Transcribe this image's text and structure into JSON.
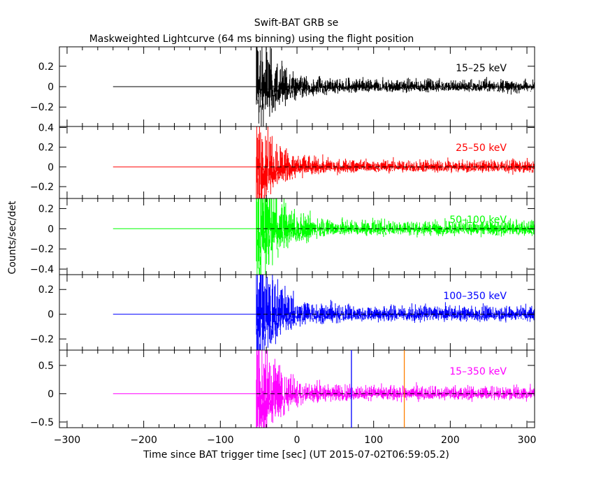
{
  "chart_data": {
    "type": "line",
    "title": "Swift-BAT GRB se",
    "subtitle": "Maskweighted Lightcurve (64 ms binning) using the flight position",
    "xlabel": "Time since BAT trigger time [sec] (UT 2015-07-02T06:59:05.2)",
    "ylabel": "Counts/sec/det",
    "xlim": [
      -310,
      310
    ],
    "xticks": [
      -300,
      -200,
      -100,
      0,
      100,
      200,
      300
    ],
    "xtick_labels": [
      "−300",
      "−200",
      "−100",
      "0",
      "100",
      "200",
      "300"
    ],
    "bin_size_sec": 0.064,
    "data_start_sec": -240,
    "burst_start_sec": -53,
    "zero_line": "dashed",
    "vertical_markers": [
      {
        "x": 71,
        "color": "#0000ff",
        "panel": 4
      },
      {
        "x": 140,
        "color": "#ff8000",
        "panel": 4
      }
    ],
    "series": [
      {
        "name": "15–25 keV",
        "color": "#000000",
        "ylim": [
          -0.39,
          0.39
        ],
        "yticks": [
          0.2,
          0,
          -0.2
        ],
        "ytick_labels": [
          "0.2",
          "0",
          "−0.2"
        ],
        "noise_late": 0.03,
        "noise_peak": 0.25,
        "decay_sec": 25
      },
      {
        "name": "25–50 keV",
        "color": "#ff0000",
        "ylim": [
          -0.32,
          0.41
        ],
        "yticks": [
          0.4,
          0.2,
          0,
          -0.2
        ],
        "ytick_labels": [
          "0.4",
          "0.2",
          "0",
          "−0.2"
        ],
        "noise_late": 0.03,
        "noise_peak": 0.25,
        "decay_sec": 25
      },
      {
        "name": "50–100 keV",
        "color": "#00ff00",
        "ylim": [
          -0.455,
          0.3
        ],
        "yticks": [
          0.2,
          0,
          -0.2,
          -0.4
        ],
        "ytick_labels": [
          "0.2",
          "0",
          "−0.2",
          "−0.4"
        ],
        "noise_late": 0.035,
        "noise_peak": 0.35,
        "decay_sec": 25
      },
      {
        "name": "100–350 keV",
        "color": "#0000ff",
        "ylim": [
          -0.29,
          0.32
        ],
        "yticks": [
          0.2,
          0,
          -0.2
        ],
        "ytick_labels": [
          "0.2",
          "0",
          "−0.2"
        ],
        "noise_late": 0.03,
        "noise_peak": 0.25,
        "decay_sec": 25
      },
      {
        "name": "15–350 keV",
        "color": "#ff00ff",
        "ylim": [
          -0.6,
          0.77
        ],
        "yticks": [
          0.5,
          0,
          -0.5
        ],
        "ytick_labels": [
          "0.5",
          "0",
          "−0.5"
        ],
        "noise_late": 0.06,
        "noise_peak": 0.6,
        "decay_sec": 25
      }
    ]
  }
}
